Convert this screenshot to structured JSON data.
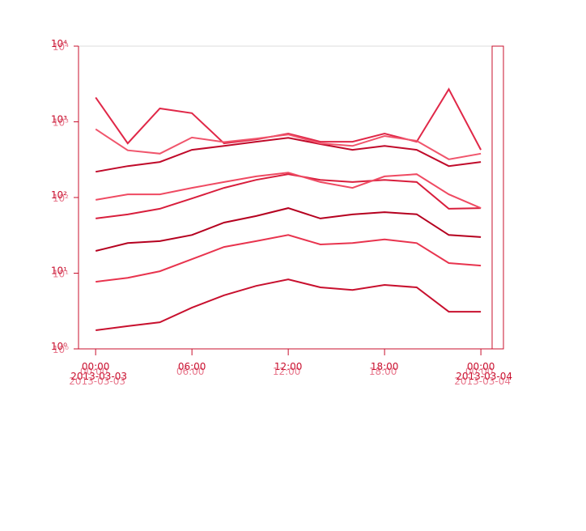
{
  "chart_data": {
    "type": "line",
    "log_y": true,
    "x": [
      "2013-03-03 00:00",
      "2013-03-03 02:00",
      "2013-03-03 04:00",
      "2013-03-03 06:00",
      "2013-03-03 08:00",
      "2013-03-03 10:00",
      "2013-03-03 12:00",
      "2013-03-03 14:00",
      "2013-03-03 16:00",
      "2013-03-03 18:00",
      "2013-03-03 20:00",
      "2013-03-03 22:00",
      "2013-03-04 00:00"
    ],
    "xlim": [
      "2013-03-02 22:56",
      "2013-03-04 00:42"
    ],
    "xticks": [
      {
        "value": "2013-03-03 00:00",
        "label": "00:00 2013-03-03"
      },
      {
        "value": "2013-03-03 06:00",
        "label": "06:00"
      },
      {
        "value": "2013-03-03 12:00",
        "label": "12:00"
      },
      {
        "value": "2013-03-03 18:00",
        "label": "18:00"
      },
      {
        "value": "2013-03-04 00:00",
        "label": "00:00 2013-03-04"
      }
    ],
    "ylim": [
      1,
      10000
    ],
    "yticks": [
      {
        "value": 1,
        "label": "10⁰"
      },
      {
        "value": 10,
        "label": "10¹"
      },
      {
        "value": 100,
        "label": "10²"
      },
      {
        "value": 1000,
        "label": "10³"
      },
      {
        "value": 10000,
        "label": "10⁴"
      }
    ],
    "series": [
      {
        "color": "#c8102e",
        "values": [
          1.76,
          2.0,
          2.25,
          3.5,
          5.1,
          6.8,
          8.3,
          6.5,
          6.0,
          7.0,
          6.5,
          3.1,
          3.1
        ]
      },
      {
        "color": "#e8344e",
        "values": [
          7.7,
          8.7,
          10.6,
          15.3,
          22.2,
          26.5,
          32,
          24,
          25,
          28,
          25,
          13.6,
          12.6
        ]
      },
      {
        "color": "#b5001f",
        "values": [
          19.7,
          25,
          26.5,
          32,
          46.6,
          56.9,
          72.5,
          52.8,
          59.7,
          64,
          60,
          32,
          30
        ]
      },
      {
        "color": "#d81e3c",
        "values": [
          52.8,
          59.7,
          71,
          97,
          134,
          171,
          203,
          171,
          160,
          171,
          160,
          71,
          72.5
        ]
      },
      {
        "color": "#ef4a62",
        "values": [
          93,
          110,
          110,
          134,
          160,
          190,
          213,
          160,
          134,
          190,
          203,
          110,
          72.5
        ]
      },
      {
        "color": "#c00a2a",
        "values": [
          219,
          260,
          295,
          427,
          480,
          545,
          614,
          508,
          427,
          480,
          427,
          260,
          295
        ]
      },
      {
        "color": "#e02848",
        "values": [
          2100,
          520,
          1500,
          1300,
          520,
          585,
          700,
          545,
          545,
          700,
          545,
          2700,
          427
        ]
      },
      {
        "color": "#f0556c",
        "values": [
          800,
          420,
          380,
          620,
          540,
          600,
          680,
          520,
          480,
          650,
          560,
          320,
          380
        ]
      }
    ]
  }
}
